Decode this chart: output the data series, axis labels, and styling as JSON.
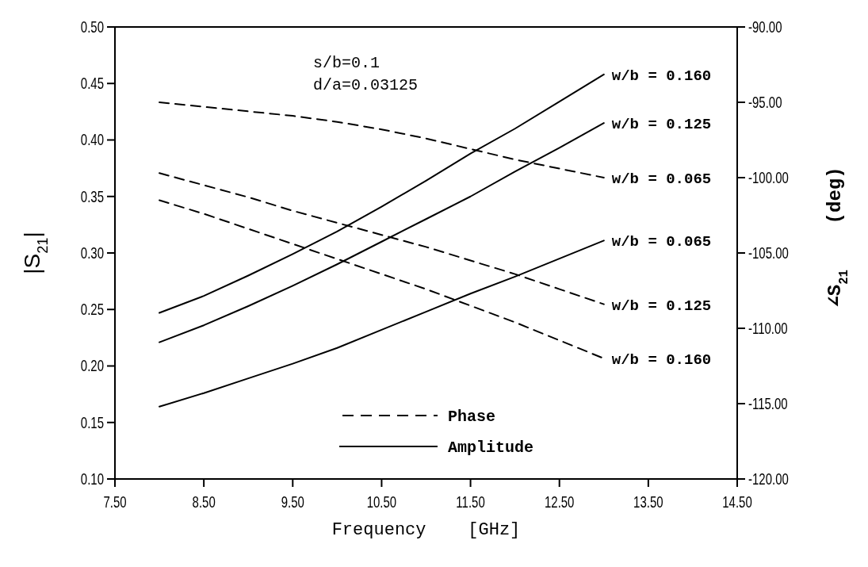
{
  "chart_data": {
    "type": "line",
    "xlabel": "Frequency    [GHz]",
    "ylabel": "|S$_{21}$|",
    "y2label": "∠S$_{21}$    (deg)",
    "x": [
      8,
      8.5,
      9,
      9.5,
      10,
      10.5,
      11,
      11.5,
      12,
      12.5,
      13
    ],
    "series": [
      {
        "name": "w/b = 0.160",
        "color": "#000000",
        "line_style": "solid",
        "values": [
          0.247,
          0.262,
          0.28,
          0.299,
          0.319,
          0.341,
          0.364,
          0.388,
          0.41,
          0.434,
          0.458
        ]
      },
      {
        "name": "w/b = 0.125",
        "color": "#000000",
        "line_style": "solid",
        "values": [
          0.221,
          0.236,
          0.253,
          0.271,
          0.29,
          0.31,
          0.33,
          0.35,
          0.372,
          0.393,
          0.415
        ]
      },
      {
        "name": "w/b = 0.065",
        "color": "#000000",
        "line_style": "dashed",
        "axis": "y2",
        "values": [
          -95.0,
          -95.3,
          -95.6,
          -95.9,
          -96.3,
          -96.8,
          -97.4,
          -98.1,
          -98.8,
          -99.4,
          -100.0
        ]
      },
      {
        "name": "w/b = 0.065",
        "color": "#000000",
        "line_style": "solid",
        "values": [
          0.164,
          0.176,
          0.189,
          0.202,
          0.216,
          0.232,
          0.248,
          0.264,
          0.279,
          0.295,
          0.311
        ]
      },
      {
        "name": "w/b = 0.125",
        "color": "#000000",
        "line_style": "dashed",
        "axis": "y2",
        "values": [
          -99.7,
          -100.5,
          -101.3,
          -102.2,
          -103.0,
          -103.8,
          -104.6,
          -105.5,
          -106.4,
          -107.4,
          -108.4
        ]
      },
      {
        "name": "w/b = 0.160",
        "color": "#000000",
        "line_style": "dashed",
        "axis": "y2",
        "values": [
          -101.5,
          -102.4,
          -103.4,
          -104.4,
          -105.4,
          -106.4,
          -107.4,
          -108.5,
          -109.6,
          -110.8,
          -112.0
        ]
      }
    ],
    "annotations": [
      "s/b=0.1",
      "d/a=0.03125",
      "Phase",
      "Amplitude"
    ],
    "xlim": [
      7.5,
      14.5
    ],
    "xticks": [
      {
        "value": 7.5,
        "label": "7.50"
      },
      {
        "value": 8.5,
        "label": "8.50"
      },
      {
        "value": 9.5,
        "label": "9.50"
      },
      {
        "value": 10.5,
        "label": "10.50"
      },
      {
        "value": 11.5,
        "label": "11.50"
      },
      {
        "value": 12.5,
        "label": "12.50"
      },
      {
        "value": 13.5,
        "label": "13.50"
      },
      {
        "value": 14.5,
        "label": "14.50"
      }
    ],
    "ylim": [
      0.1,
      0.5
    ],
    "yticks": [
      {
        "value": 0.1,
        "label": "0.10"
      },
      0.15,
      {
        "value": 0.2,
        "label": "0.20"
      },
      0.25,
      {
        "value": 0.3,
        "label": "0.30"
      },
      0.35,
      {
        "value": 0.4,
        "label": "0.40"
      },
      0.45,
      {
        "value": 0.5,
        "label": "0.50"
      }
    ],
    "y2lim": [
      -120,
      -90
    ],
    "y2ticks": [
      {
        "value": -120,
        "label": "-120.00"
      },
      {
        "value": -115,
        "label": "-115.00"
      },
      {
        "value": -110,
        "label": "-110.00"
      },
      {
        "value": -105,
        "label": "-105.00"
      },
      {
        "value": -100,
        "label": "-100.00"
      },
      {
        "value": -95,
        "label": "-95.00"
      },
      {
        "value": -90,
        "label": "-90.00"
      }
    ],
    "grid": false,
    "marker": "none"
  }
}
